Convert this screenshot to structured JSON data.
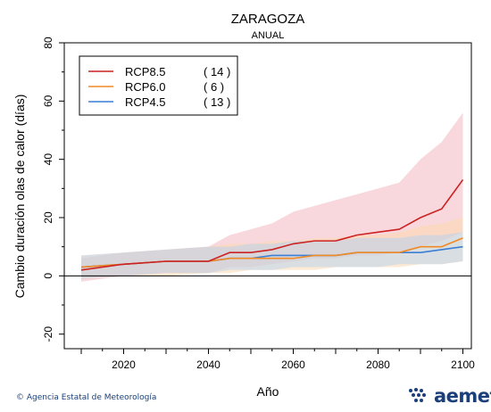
{
  "chart_data": {
    "type": "line",
    "title": "ZARAGOZA",
    "subtitle": "ANUAL",
    "xlabel": "Año",
    "ylabel": "Cambio duración olas de calor (días)",
    "xlim": [
      2006,
      2102
    ],
    "ylim": [
      -25,
      80
    ],
    "x_ticks": [
      2020,
      2040,
      2060,
      2080,
      2100
    ],
    "y_ticks": [
      -20,
      0,
      20,
      40,
      60,
      80
    ],
    "grid": false,
    "legend_position": "top-left",
    "series": [
      {
        "name": "RCP8.5",
        "count": "( 14 )",
        "color": "#cc2222",
        "band_color": "#f2b8bf",
        "x": [
          2010,
          2020,
          2030,
          2040,
          2045,
          2050,
          2055,
          2060,
          2065,
          2070,
          2075,
          2080,
          2085,
          2090,
          2095,
          2100
        ],
        "y": [
          2,
          4,
          5,
          5,
          8,
          8,
          9,
          11,
          12,
          12,
          14,
          15,
          16,
          20,
          23,
          33
        ],
        "lower": [
          -2,
          0,
          1,
          1,
          3,
          3,
          4,
          5,
          6,
          6,
          7,
          7,
          8,
          10,
          12,
          15
        ],
        "upper": [
          6,
          8,
          9,
          10,
          14,
          16,
          18,
          22,
          24,
          26,
          28,
          30,
          32,
          40,
          46,
          56
        ]
      },
      {
        "name": "RCP6.0",
        "count": "(   6 )",
        "color": "#f08a24",
        "band_color": "#fbd9b0",
        "x": [
          2010,
          2020,
          2030,
          2040,
          2045,
          2050,
          2055,
          2060,
          2065,
          2070,
          2075,
          2080,
          2085,
          2090,
          2095,
          2100
        ],
        "y": [
          3,
          4,
          5,
          5,
          6,
          6,
          6,
          6,
          7,
          7,
          8,
          8,
          8,
          10,
          10,
          13
        ],
        "lower": [
          -1,
          0,
          0,
          1,
          1,
          2,
          2,
          2,
          2,
          3,
          3,
          3,
          3,
          4,
          4,
          5
        ],
        "upper": [
          7,
          8,
          9,
          10,
          11,
          11,
          12,
          12,
          13,
          13,
          14,
          14,
          15,
          17,
          18,
          20
        ]
      },
      {
        "name": "RCP4.5",
        "count": "( 13 )",
        "color": "#3a7fd5",
        "band_color": "#bcd4ec",
        "x": [
          2010,
          2020,
          2030,
          2040,
          2045,
          2050,
          2055,
          2060,
          2065,
          2070,
          2075,
          2080,
          2085,
          2090,
          2095,
          2100
        ],
        "y": [
          3,
          4,
          5,
          5,
          6,
          6,
          7,
          7,
          7,
          7,
          8,
          8,
          8,
          8,
          9,
          10
        ],
        "lower": [
          -1,
          0,
          1,
          1,
          2,
          2,
          2,
          3,
          3,
          3,
          3,
          3,
          4,
          4,
          4,
          5
        ],
        "upper": [
          7,
          8,
          9,
          10,
          10,
          11,
          11,
          12,
          12,
          12,
          13,
          13,
          13,
          14,
          14,
          15
        ]
      }
    ]
  },
  "footer": {
    "credit": "© Agencia Estatal de Meteorología",
    "logo": "aemet"
  }
}
